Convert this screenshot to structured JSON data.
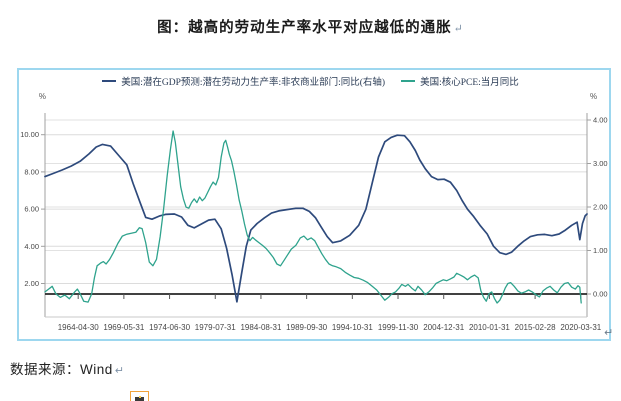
{
  "title": {
    "text": "图：越高的劳动生产率水平对应越低的通胀",
    "paragraph_mark": "↵"
  },
  "source": {
    "text": "数据来源：Wind",
    "paragraph_mark": "↵"
  },
  "chart": {
    "border_color": "#9dd7ef",
    "return_mark": "↵",
    "zero_line_color": "#262626"
  },
  "chart_data": {
    "type": "line",
    "legend_position": "top-center",
    "grid": true,
    "x_axis": {
      "tick_labels": [
        "1964-04-30",
        "1969-05-31",
        "1974-06-30",
        "1979-07-31",
        "1984-08-31",
        "1989-09-30",
        "1994-10-31",
        "1999-11-30",
        "2004-12-31",
        "2010-01-31",
        "2015-02-28",
        "2020-03-31"
      ]
    },
    "left_axis": {
      "unit": "%",
      "tick_values": [
        2,
        4,
        6,
        8,
        10
      ],
      "tick_labels": [
        "2.00",
        "4.00",
        "6.00",
        "8.00",
        "10.00"
      ],
      "range": [
        0.4,
        11.2
      ]
    },
    "right_axis": {
      "unit": "%",
      "tick_values": [
        0,
        1,
        2,
        3,
        4
      ],
      "tick_labels": [
        "0.00",
        "1.00",
        "2.00",
        "3.00",
        "4.00"
      ],
      "range": [
        -0.47,
        4.16
      ],
      "zero_line": true
    },
    "series": [
      {
        "name": "美国:潜在GDP预测:潜在劳动力生产率:非农商业部门:同比(右轴)",
        "axis": "right",
        "color": "#2e4a7c",
        "width": 1.7,
        "points": [
          [
            1960.6,
            2.7
          ],
          [
            1961.5,
            2.77
          ],
          [
            1962.5,
            2.85
          ],
          [
            1963.5,
            2.94
          ],
          [
            1964.5,
            3.05
          ],
          [
            1965.5,
            3.22
          ],
          [
            1966.3,
            3.38
          ],
          [
            1967.0,
            3.44
          ],
          [
            1967.9,
            3.4
          ],
          [
            1968.9,
            3.16
          ],
          [
            1969.7,
            2.97
          ],
          [
            1970.4,
            2.54
          ],
          [
            1971.2,
            2.09
          ],
          [
            1971.8,
            1.76
          ],
          [
            1972.5,
            1.72
          ],
          [
            1973.3,
            1.79
          ],
          [
            1974.0,
            1.83
          ],
          [
            1975.0,
            1.84
          ],
          [
            1975.8,
            1.77
          ],
          [
            1976.5,
            1.58
          ],
          [
            1977.2,
            1.52
          ],
          [
            1978.0,
            1.61
          ],
          [
            1978.8,
            1.7
          ],
          [
            1979.5,
            1.72
          ],
          [
            1980.2,
            1.5
          ],
          [
            1980.8,
            1.05
          ],
          [
            1981.4,
            0.45
          ],
          [
            1981.95,
            -0.18
          ],
          [
            1982.5,
            0.5
          ],
          [
            1983.0,
            1.1
          ],
          [
            1983.5,
            1.47
          ],
          [
            1984.2,
            1.62
          ],
          [
            1985.0,
            1.75
          ],
          [
            1985.8,
            1.86
          ],
          [
            1986.6,
            1.91
          ],
          [
            1987.5,
            1.94
          ],
          [
            1988.5,
            1.97
          ],
          [
            1989.3,
            1.97
          ],
          [
            1990.0,
            1.9
          ],
          [
            1990.7,
            1.75
          ],
          [
            1991.3,
            1.55
          ],
          [
            1992.0,
            1.32
          ],
          [
            1992.6,
            1.18
          ],
          [
            1993.5,
            1.22
          ],
          [
            1994.5,
            1.35
          ],
          [
            1995.5,
            1.58
          ],
          [
            1996.3,
            1.95
          ],
          [
            1997.0,
            2.55
          ],
          [
            1997.7,
            3.15
          ],
          [
            1998.4,
            3.5
          ],
          [
            1999.1,
            3.6
          ],
          [
            1999.8,
            3.65
          ],
          [
            2000.6,
            3.64
          ],
          [
            2001.2,
            3.5
          ],
          [
            2001.8,
            3.3
          ],
          [
            2002.3,
            3.08
          ],
          [
            2002.9,
            2.88
          ],
          [
            2003.6,
            2.7
          ],
          [
            2004.3,
            2.63
          ],
          [
            2005.0,
            2.64
          ],
          [
            2005.7,
            2.57
          ],
          [
            2006.4,
            2.38
          ],
          [
            2007.0,
            2.15
          ],
          [
            2007.6,
            1.95
          ],
          [
            2008.3,
            1.78
          ],
          [
            2009.0,
            1.58
          ],
          [
            2009.8,
            1.38
          ],
          [
            2010.5,
            1.1
          ],
          [
            2011.2,
            0.95
          ],
          [
            2011.9,
            0.91
          ],
          [
            2012.5,
            0.96
          ],
          [
            2013.2,
            1.1
          ],
          [
            2013.9,
            1.22
          ],
          [
            2014.6,
            1.32
          ],
          [
            2015.4,
            1.36
          ],
          [
            2016.2,
            1.37
          ],
          [
            2017.0,
            1.34
          ],
          [
            2017.8,
            1.38
          ],
          [
            2018.5,
            1.47
          ],
          [
            2019.2,
            1.58
          ],
          [
            2019.8,
            1.65
          ],
          [
            2020.1,
            1.25
          ],
          [
            2020.4,
            1.62
          ],
          [
            2020.7,
            1.8
          ],
          [
            2020.9,
            1.84
          ]
        ]
      },
      {
        "name": "美国:核心PCE:当月同比",
        "axis": "left",
        "color": "#2fa38d",
        "width": 1.3,
        "points": [
          [
            1960.6,
            1.55
          ],
          [
            1961.0,
            1.7
          ],
          [
            1961.4,
            1.85
          ],
          [
            1961.8,
            1.45
          ],
          [
            1962.3,
            1.25
          ],
          [
            1962.8,
            1.38
          ],
          [
            1963.3,
            1.18
          ],
          [
            1963.9,
            1.55
          ],
          [
            1964.2,
            1.7
          ],
          [
            1964.5,
            1.45
          ],
          [
            1964.9,
            1.05
          ],
          [
            1965.4,
            1.0
          ],
          [
            1965.8,
            1.45
          ],
          [
            1966.1,
            2.3
          ],
          [
            1966.4,
            2.95
          ],
          [
            1966.8,
            3.1
          ],
          [
            1967.1,
            3.18
          ],
          [
            1967.4,
            3.05
          ],
          [
            1967.8,
            3.3
          ],
          [
            1968.2,
            3.65
          ],
          [
            1968.7,
            4.15
          ],
          [
            1969.2,
            4.55
          ],
          [
            1969.7,
            4.65
          ],
          [
            1970.2,
            4.7
          ],
          [
            1970.7,
            4.75
          ],
          [
            1971.1,
            5.0
          ],
          [
            1971.4,
            4.95
          ],
          [
            1971.8,
            4.2
          ],
          [
            1972.2,
            3.15
          ],
          [
            1972.6,
            2.95
          ],
          [
            1973.0,
            3.3
          ],
          [
            1973.4,
            4.5
          ],
          [
            1973.8,
            6.0
          ],
          [
            1974.2,
            7.8
          ],
          [
            1974.55,
            9.2
          ],
          [
            1974.85,
            10.2
          ],
          [
            1975.1,
            9.6
          ],
          [
            1975.4,
            8.4
          ],
          [
            1975.7,
            7.2
          ],
          [
            1976.0,
            6.55
          ],
          [
            1976.3,
            6.1
          ],
          [
            1976.6,
            6.05
          ],
          [
            1976.9,
            6.35
          ],
          [
            1977.2,
            6.55
          ],
          [
            1977.5,
            6.35
          ],
          [
            1977.8,
            6.65
          ],
          [
            1978.1,
            6.45
          ],
          [
            1978.4,
            6.6
          ],
          [
            1978.7,
            6.9
          ],
          [
            1979.0,
            7.2
          ],
          [
            1979.3,
            7.45
          ],
          [
            1979.6,
            7.3
          ],
          [
            1979.9,
            7.7
          ],
          [
            1980.2,
            8.8
          ],
          [
            1980.5,
            9.55
          ],
          [
            1980.7,
            9.7
          ],
          [
            1980.9,
            9.35
          ],
          [
            1981.1,
            8.95
          ],
          [
            1981.35,
            8.6
          ],
          [
            1981.6,
            8.05
          ],
          [
            1981.9,
            7.3
          ],
          [
            1982.2,
            6.5
          ],
          [
            1982.5,
            5.9
          ],
          [
            1982.8,
            5.2
          ],
          [
            1983.1,
            4.6
          ],
          [
            1983.4,
            4.3
          ],
          [
            1983.7,
            4.48
          ],
          [
            1984.0,
            4.35
          ],
          [
            1984.4,
            4.2
          ],
          [
            1984.8,
            4.05
          ],
          [
            1985.2,
            3.88
          ],
          [
            1985.6,
            3.65
          ],
          [
            1986.0,
            3.4
          ],
          [
            1986.4,
            3.05
          ],
          [
            1986.8,
            2.95
          ],
          [
            1987.2,
            3.25
          ],
          [
            1987.6,
            3.55
          ],
          [
            1988.0,
            3.85
          ],
          [
            1988.5,
            4.05
          ],
          [
            1989.0,
            4.45
          ],
          [
            1989.4,
            4.55
          ],
          [
            1989.8,
            4.35
          ],
          [
            1990.2,
            4.45
          ],
          [
            1990.6,
            4.3
          ],
          [
            1991.0,
            3.95
          ],
          [
            1991.4,
            3.6
          ],
          [
            1991.8,
            3.3
          ],
          [
            1992.2,
            3.05
          ],
          [
            1992.6,
            2.95
          ],
          [
            1993.0,
            2.9
          ],
          [
            1993.5,
            2.8
          ],
          [
            1994.0,
            2.6
          ],
          [
            1994.5,
            2.45
          ],
          [
            1995.0,
            2.32
          ],
          [
            1995.5,
            2.28
          ],
          [
            1996.0,
            2.18
          ],
          [
            1996.5,
            2.05
          ],
          [
            1997.0,
            1.85
          ],
          [
            1997.5,
            1.65
          ],
          [
            1998.0,
            1.35
          ],
          [
            1998.4,
            1.1
          ],
          [
            1998.8,
            1.25
          ],
          [
            1999.2,
            1.45
          ],
          [
            1999.6,
            1.55
          ],
          [
            2000.0,
            1.75
          ],
          [
            2000.3,
            1.95
          ],
          [
            2000.7,
            1.85
          ],
          [
            2001.0,
            1.95
          ],
          [
            2001.4,
            1.75
          ],
          [
            2001.8,
            1.6
          ],
          [
            2002.1,
            1.85
          ],
          [
            2002.5,
            1.65
          ],
          [
            2002.9,
            1.4
          ],
          [
            2003.3,
            1.55
          ],
          [
            2003.7,
            1.75
          ],
          [
            2004.1,
            2.0
          ],
          [
            2004.5,
            2.1
          ],
          [
            2004.9,
            2.2
          ],
          [
            2005.3,
            2.15
          ],
          [
            2005.7,
            2.25
          ],
          [
            2006.1,
            2.35
          ],
          [
            2006.4,
            2.55
          ],
          [
            2006.8,
            2.45
          ],
          [
            2007.2,
            2.35
          ],
          [
            2007.6,
            2.2
          ],
          [
            2008.0,
            2.35
          ],
          [
            2008.4,
            2.45
          ],
          [
            2008.8,
            2.3
          ],
          [
            2009.1,
            1.6
          ],
          [
            2009.4,
            1.25
          ],
          [
            2009.7,
            1.05
          ],
          [
            2010.0,
            1.45
          ],
          [
            2010.3,
            1.55
          ],
          [
            2010.6,
            1.2
          ],
          [
            2010.9,
            0.95
          ],
          [
            2011.2,
            1.1
          ],
          [
            2011.5,
            1.4
          ],
          [
            2011.8,
            1.75
          ],
          [
            2012.1,
            2.0
          ],
          [
            2012.4,
            2.05
          ],
          [
            2012.8,
            1.85
          ],
          [
            2013.2,
            1.6
          ],
          [
            2013.6,
            1.48
          ],
          [
            2014.0,
            1.55
          ],
          [
            2014.4,
            1.65
          ],
          [
            2014.8,
            1.55
          ],
          [
            2015.2,
            1.4
          ],
          [
            2015.6,
            1.28
          ],
          [
            2016.0,
            1.6
          ],
          [
            2016.4,
            1.75
          ],
          [
            2016.8,
            1.85
          ],
          [
            2017.2,
            1.65
          ],
          [
            2017.6,
            1.5
          ],
          [
            2018.0,
            1.8
          ],
          [
            2018.4,
            2.0
          ],
          [
            2018.8,
            2.05
          ],
          [
            2019.2,
            1.8
          ],
          [
            2019.6,
            1.7
          ],
          [
            2019.9,
            1.88
          ],
          [
            2020.1,
            1.8
          ],
          [
            2020.25,
            0.95
          ]
        ]
      }
    ]
  }
}
